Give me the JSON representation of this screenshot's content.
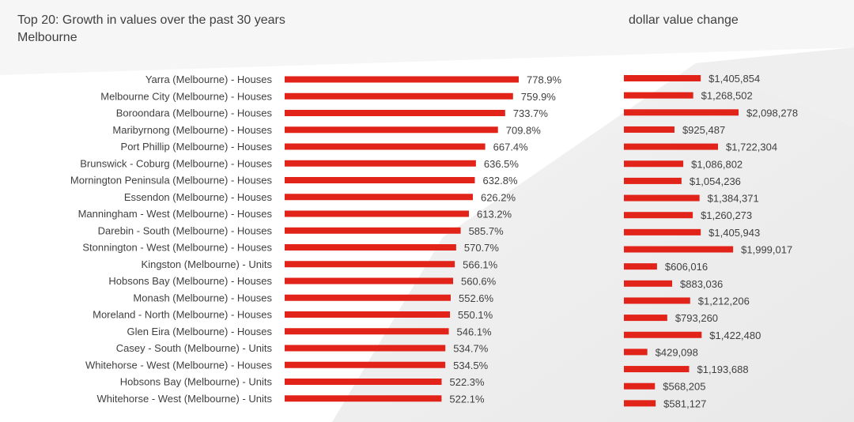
{
  "header": {
    "title_line1": "Top 20:  Growth in values over the past 30 years",
    "title_line2": "Melbourne",
    "right_title": "dollar value change"
  },
  "colors": {
    "bar": "#e2231a",
    "text": "#404040"
  },
  "chart_data": [
    {
      "type": "bar",
      "orientation": "horizontal",
      "title": "Top 20:  Growth in values over the past 30 years",
      "subtitle": "Melbourne",
      "categories": [
        "Yarra (Melbourne) - Houses",
        "Melbourne City (Melbourne) - Houses",
        "Boroondara (Melbourne) - Houses",
        "Maribyrnong (Melbourne) - Houses",
        "Port Phillip (Melbourne) - Houses",
        "Brunswick - Coburg (Melbourne) - Houses",
        "Mornington Peninsula (Melbourne) - Houses",
        "Essendon (Melbourne) - Houses",
        "Manningham - West (Melbourne) - Houses",
        "Darebin - South (Melbourne) - Houses",
        "Stonnington - West (Melbourne) - Houses",
        "Kingston (Melbourne) - Units",
        "Hobsons Bay (Melbourne) - Houses",
        "Monash (Melbourne) - Houses",
        "Moreland - North (Melbourne) - Houses",
        "Glen Eira (Melbourne) - Houses",
        "Casey - South (Melbourne) - Units",
        "Whitehorse - West (Melbourne) - Houses",
        "Hobsons Bay (Melbourne) - Units",
        "Whitehorse - West (Melbourne) - Units"
      ],
      "values": [
        778.9,
        759.9,
        733.7,
        709.8,
        667.4,
        636.5,
        632.8,
        626.2,
        613.2,
        585.7,
        570.7,
        566.1,
        560.6,
        552.6,
        550.1,
        546.1,
        534.7,
        534.5,
        522.3,
        522.1
      ],
      "value_labels": [
        "778.9%",
        "759.9%",
        "733.7%",
        "709.8%",
        "667.4%",
        "636.5%",
        "632.8%",
        "626.2%",
        "613.2%",
        "585.7%",
        "570.7%",
        "566.1%",
        "560.6%",
        "552.6%",
        "550.1%",
        "546.1%",
        "534.7%",
        "534.5%",
        "522.3%",
        "522.1%"
      ],
      "xlim": [
        0,
        900
      ],
      "grid": false
    },
    {
      "type": "bar",
      "orientation": "horizontal",
      "title": "dollar value change",
      "values": [
        1405854,
        1268502,
        2098278,
        925487,
        1722304,
        1086802,
        1054236,
        1384371,
        1260273,
        1405943,
        1999017,
        606016,
        883036,
        1212206,
        793260,
        1422480,
        429098,
        1193688,
        568205,
        581127
      ],
      "value_labels": [
        "$1,405,854",
        "$1,268,502",
        "$2,098,278",
        "$925,487",
        "$1,722,304",
        "$1,086,802",
        "$1,054,236",
        "$1,384,371",
        "$1,260,273",
        "$1,405,943",
        "$1,999,017",
        "$606,016",
        "$883,036",
        "$1,212,206",
        "$793,260",
        "$1,422,480",
        "$429,098",
        "$1,193,688",
        "$568,205",
        "$581,127"
      ],
      "grid": false
    }
  ]
}
